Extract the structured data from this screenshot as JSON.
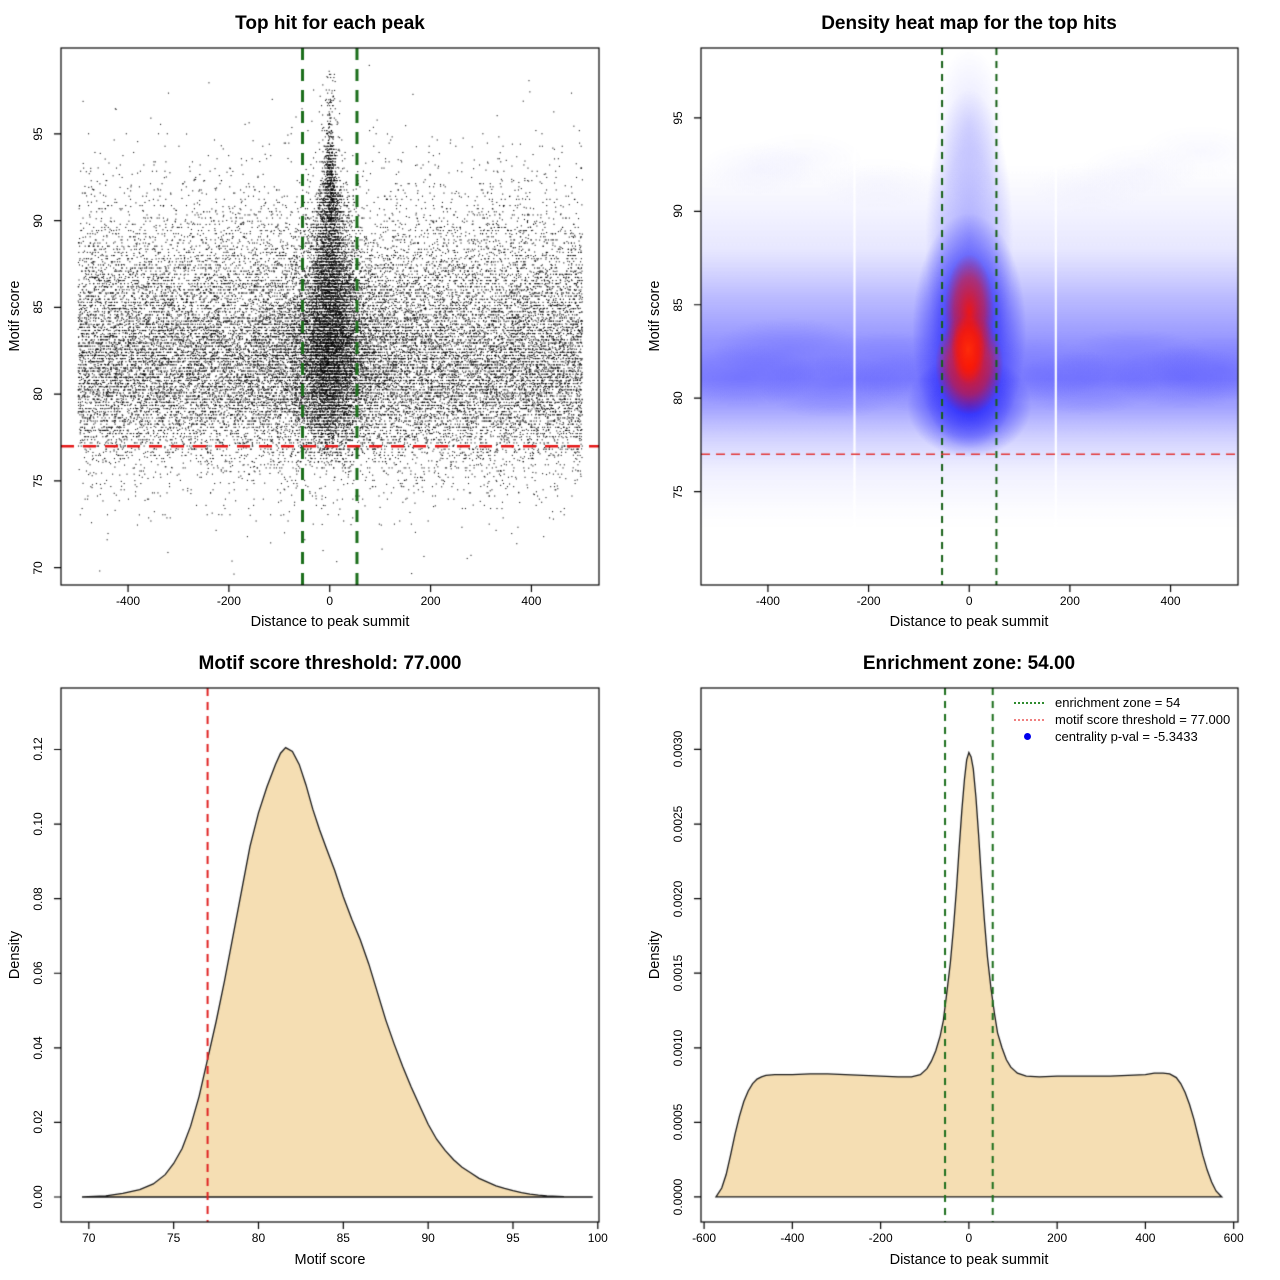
{
  "page": {
    "background": "#ffffff"
  },
  "chart_data": [
    {
      "type": "scatter",
      "title": "Top hit for each peak",
      "xlabel": "Distance to peak summit",
      "ylabel": "Motif score",
      "xlim": [
        -533,
        534
      ],
      "ylim": [
        69.0,
        99.95
      ],
      "xticks": {
        "values": [
          -400,
          -200,
          0,
          200,
          400
        ],
        "labels": [
          "-400",
          "-200",
          "0",
          "200",
          "400"
        ]
      },
      "yticks": {
        "values": [
          70,
          75,
          80,
          85,
          90,
          95
        ],
        "labels": [
          "70",
          "75",
          "80",
          "85",
          "90",
          "95"
        ]
      },
      "threshold_line": {
        "y": 77,
        "color": "#e51717",
        "width": 2.6,
        "dash": [
          13,
          9
        ]
      },
      "zone_lines": {
        "x": [
          -54,
          54
        ],
        "color": "#1b6e1b",
        "width": 3,
        "dash": [
          12,
          9
        ]
      },
      "points": {
        "color": "#000000",
        "n_background": 24000,
        "n_central": 9000,
        "x_range": [
          -500,
          500
        ],
        "central_shift": 1.15,
        "central_tail_frac": 0.06,
        "quantize_frac": 0.6,
        "quantize_step": 0.18,
        "seed": 42
      }
    },
    {
      "type": "heatmap",
      "title": "Density heat map for the top hits",
      "xlabel": "Distance to peak summit",
      "ylabel": "Motif score",
      "xlim": [
        -533,
        534
      ],
      "ylim": [
        70.0,
        98.74
      ],
      "xticks": {
        "values": [
          -400,
          -200,
          0,
          200,
          400
        ],
        "labels": [
          "-400",
          "-200",
          "0",
          "200",
          "400"
        ]
      },
      "yticks": {
        "values": [
          75,
          80,
          85,
          90,
          95
        ],
        "labels": [
          "75",
          "80",
          "85",
          "90",
          "95"
        ]
      },
      "threshold_line": {
        "y": 77,
        "color": "#e23535",
        "width": 1.6,
        "dash": [
          9,
          6
        ]
      },
      "zone_lines": {
        "x": [
          -54,
          54
        ],
        "color": "#155f15",
        "width": 2,
        "dash": [
          7,
          6
        ]
      },
      "band": {
        "center_score": 81.3,
        "strong_range": [
          78.5,
          86.5
        ]
      },
      "hotspot": {
        "x": 0,
        "y": 82.4,
        "color": "#ff1400"
      },
      "blue": "#2a2aff",
      "white_gaps": [
        -228,
        172
      ]
    },
    {
      "type": "area",
      "title": "Motif score threshold: 77.000",
      "xlabel": "Motif score",
      "ylabel": "Density",
      "xlim": [
        68.36,
        100.07
      ],
      "ylim": [
        -0.0067,
        0.13649
      ],
      "xticks": {
        "values": [
          70,
          75,
          80,
          85,
          90,
          95,
          100
        ],
        "labels": [
          "70",
          "75",
          "80",
          "85",
          "90",
          "95",
          "100"
        ]
      },
      "yticks": {
        "values": [
          0,
          0.02,
          0.04,
          0.06,
          0.08,
          0.1,
          0.12
        ],
        "labels": [
          "0.00",
          "0.02",
          "0.04",
          "0.06",
          "0.08",
          "0.10",
          "0.12"
        ]
      },
      "fill": "#f5deb3",
      "stroke": "#1a1a1a",
      "threshold_line": {
        "x": 77,
        "color": "#e02222",
        "width": 2,
        "dash": [
          8,
          6
        ]
      },
      "curve": [
        [
          69.6,
          0
        ],
        [
          71,
          0.0003
        ],
        [
          72,
          0.001
        ],
        [
          73,
          0.002
        ],
        [
          73.8,
          0.0035
        ],
        [
          74.5,
          0.006
        ],
        [
          75,
          0.009
        ],
        [
          75.5,
          0.013
        ],
        [
          76,
          0.019
        ],
        [
          76.5,
          0.027
        ],
        [
          77,
          0.037
        ],
        [
          77.5,
          0.047
        ],
        [
          78,
          0.058
        ],
        [
          78.5,
          0.07
        ],
        [
          79,
          0.082
        ],
        [
          79.5,
          0.094
        ],
        [
          80,
          0.103
        ],
        [
          80.5,
          0.11
        ],
        [
          81,
          0.116
        ],
        [
          81.3,
          0.119
        ],
        [
          81.6,
          0.1205
        ],
        [
          82,
          0.1195
        ],
        [
          82.4,
          0.116
        ],
        [
          82.8,
          0.1105
        ],
        [
          83.2,
          0.104
        ],
        [
          83.6,
          0.0985
        ],
        [
          84,
          0.0935
        ],
        [
          84.5,
          0.0875
        ],
        [
          85,
          0.0805
        ],
        [
          85.5,
          0.0745
        ],
        [
          86,
          0.069
        ],
        [
          86.5,
          0.0625
        ],
        [
          87,
          0.055
        ],
        [
          87.5,
          0.0475
        ],
        [
          88,
          0.041
        ],
        [
          88.5,
          0.035
        ],
        [
          89,
          0.0295
        ],
        [
          89.5,
          0.0245
        ],
        [
          90,
          0.0195
        ],
        [
          90.5,
          0.0155
        ],
        [
          91,
          0.0125
        ],
        [
          91.5,
          0.01
        ],
        [
          92,
          0.008
        ],
        [
          92.5,
          0.0065
        ],
        [
          93,
          0.005
        ],
        [
          93.5,
          0.004
        ],
        [
          94,
          0.003
        ],
        [
          94.5,
          0.0023
        ],
        [
          95,
          0.0017
        ],
        [
          95.5,
          0.0012
        ],
        [
          96,
          0.0008
        ],
        [
          96.5,
          0.0005
        ],
        [
          97,
          0.0003
        ],
        [
          98,
          0.0001
        ],
        [
          99,
          3e-05
        ],
        [
          99.7,
          0
        ]
      ]
    },
    {
      "type": "area",
      "title": "Enrichment zone: 54.00",
      "xlabel": "Distance to peak summit",
      "ylabel": "Density",
      "xlim": [
        -607,
        609.8
      ],
      "ylim": [
        -0.000168,
        0.003412
      ],
      "xticks": {
        "values": [
          -600,
          -400,
          -200,
          0,
          200,
          400,
          600
        ],
        "labels": [
          "-600",
          "-400",
          "-200",
          "0",
          "200",
          "400",
          "600"
        ]
      },
      "yticks": {
        "values": [
          0,
          0.0005,
          0.001,
          0.0015,
          0.002,
          0.0025,
          0.003
        ],
        "labels": [
          "0.0000",
          "0.0005",
          "0.0010",
          "0.0015",
          "0.0020",
          "0.0025",
          "0.0030"
        ]
      },
      "fill": "#f5deb3",
      "stroke": "#1a1a1a",
      "zone_lines": {
        "x": [
          -54,
          54
        ],
        "color": "#1b6e1b",
        "width": 2,
        "dash": [
          7,
          6
        ]
      },
      "curve": [
        [
          -573,
          0
        ],
        [
          -560,
          6e-05
        ],
        [
          -550,
          0.00015
        ],
        [
          -540,
          0.00028
        ],
        [
          -530,
          0.00042
        ],
        [
          -520,
          0.00054
        ],
        [
          -510,
          0.00064
        ],
        [
          -500,
          0.00071
        ],
        [
          -490,
          0.00076
        ],
        [
          -480,
          0.00079
        ],
        [
          -470,
          0.000805
        ],
        [
          -460,
          0.000815
        ],
        [
          -440,
          0.00082
        ],
        [
          -400,
          0.00082
        ],
        [
          -360,
          0.000825
        ],
        [
          -320,
          0.000825
        ],
        [
          -280,
          0.00082
        ],
        [
          -240,
          0.000815
        ],
        [
          -200,
          0.00081
        ],
        [
          -160,
          0.000805
        ],
        [
          -130,
          0.000805
        ],
        [
          -110,
          0.00082
        ],
        [
          -95,
          0.00086
        ],
        [
          -85,
          0.00091
        ],
        [
          -75,
          0.00098
        ],
        [
          -65,
          0.00108
        ],
        [
          -58,
          0.00118
        ],
        [
          -50,
          0.00137
        ],
        [
          -42,
          0.00157
        ],
        [
          -35,
          0.0018
        ],
        [
          -28,
          0.00207
        ],
        [
          -22,
          0.00234
        ],
        [
          -16,
          0.00259
        ],
        [
          -10,
          0.0028
        ],
        [
          -5,
          0.00293
        ],
        [
          0,
          0.00298
        ],
        [
          5,
          0.00295
        ],
        [
          10,
          0.00287
        ],
        [
          16,
          0.00268
        ],
        [
          22,
          0.00243
        ],
        [
          28,
          0.00215
        ],
        [
          35,
          0.00186
        ],
        [
          42,
          0.00161
        ],
        [
          50,
          0.0014
        ],
        [
          58,
          0.00123
        ],
        [
          65,
          0.0011
        ],
        [
          75,
          0.001
        ],
        [
          85,
          0.00092
        ],
        [
          95,
          0.00087
        ],
        [
          110,
          0.00083
        ],
        [
          130,
          0.00081
        ],
        [
          160,
          0.000805
        ],
        [
          200,
          0.00081
        ],
        [
          240,
          0.00081
        ],
        [
          280,
          0.00081
        ],
        [
          320,
          0.00081
        ],
        [
          360,
          0.000815
        ],
        [
          400,
          0.00082
        ],
        [
          420,
          0.00083
        ],
        [
          440,
          0.00083
        ],
        [
          455,
          0.000825
        ],
        [
          470,
          0.0008
        ],
        [
          480,
          0.00076
        ],
        [
          490,
          0.0007
        ],
        [
          500,
          0.00062
        ],
        [
          510,
          0.00052
        ],
        [
          520,
          0.0004
        ],
        [
          530,
          0.00028
        ],
        [
          540,
          0.00018
        ],
        [
          550,
          0.0001
        ],
        [
          560,
          4e-05
        ],
        [
          573,
          0
        ]
      ],
      "legend": {
        "items": [
          {
            "key": "dotted",
            "color": "#2e8b2e",
            "label": "enrichment zone = 54"
          },
          {
            "key": "dotted",
            "color": "#f08080",
            "label": "motif score threshold = 77.000"
          },
          {
            "key": "dot",
            "color": "#0000ee",
            "label": "centrality p-val = -5.3433"
          }
        ]
      }
    }
  ]
}
